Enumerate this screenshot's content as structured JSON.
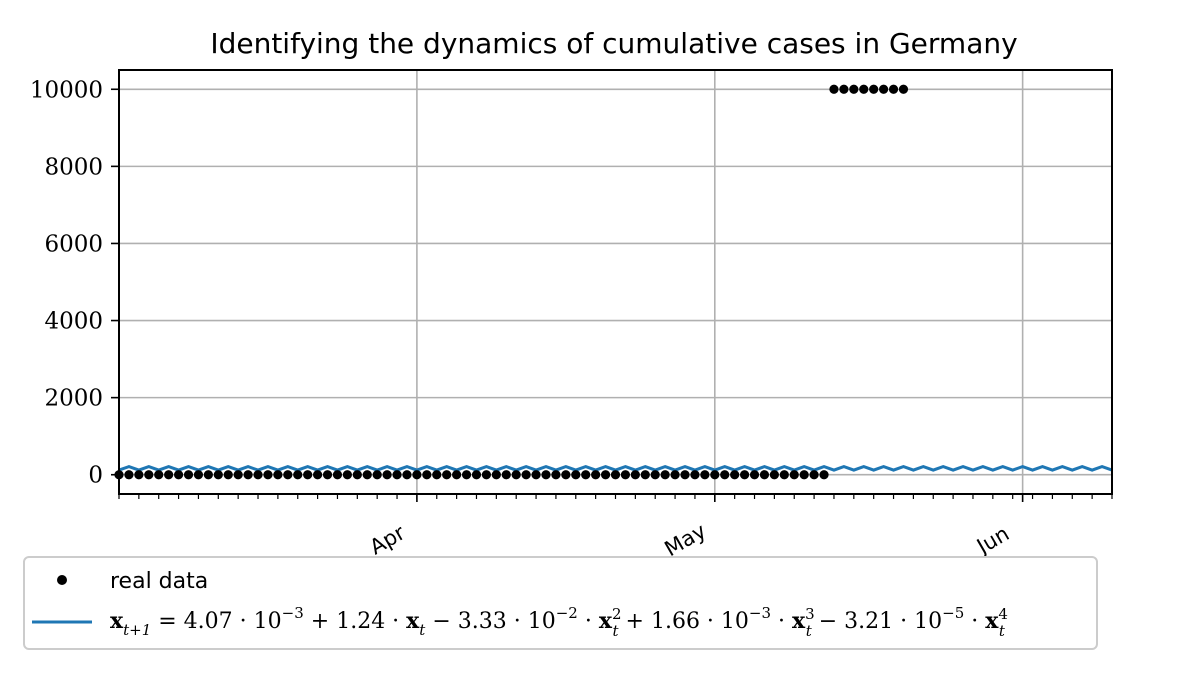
{
  "chart_data": {
    "type": "line",
    "title": "Identifying the dynamics of cumulative cases in Germany",
    "xlabel": "",
    "ylabel": "",
    "x_axis": {
      "kind": "date",
      "start": "2020-03-02",
      "end": "2020-06-10",
      "major_ticks": [
        {
          "date": "2020-04-01",
          "label": "Apr"
        },
        {
          "date": "2020-05-01",
          "label": "May"
        },
        {
          "date": "2020-06-01",
          "label": "Jun"
        }
      ],
      "minor_tick_interval_days": 2,
      "label_rotation_deg": 30
    },
    "ylim": [
      -500,
      10500
    ],
    "yticks": [
      0,
      2000,
      4000,
      6000,
      8000,
      10000
    ],
    "grid": true,
    "legend_position": "below",
    "series": [
      {
        "name": "real data",
        "kind": "points",
        "color": "#000000",
        "segments": [
          {
            "start": "2020-03-02",
            "end": "2020-05-12",
            "step_days": 1,
            "value": 0
          },
          {
            "start": "2020-05-13",
            "end": "2020-05-20",
            "step_days": 1,
            "value": 10000
          }
        ]
      },
      {
        "name": "x_{t+1} = 4.07·10^-3 + 1.24·x_t − 3.33·10^-2·x_t^2 + 1.66·10^-3·x_t^3 − 3.21·10^-5·x_t^4",
        "kind": "line",
        "color": "#1f77b4",
        "start": "2020-03-02",
        "end": "2020-06-10",
        "step_days": 1,
        "pattern": [
          120,
          210
        ],
        "pattern_note": "oscillates between 120 and 210 each day"
      }
    ],
    "legend": {
      "entries": [
        {
          "marker": "dot",
          "label": "real data"
        },
        {
          "marker": "line",
          "label_parts": [
            {
              "t": "x",
              "b": true
            },
            {
              "t": "t+1",
              "sub": true
            },
            {
              "t": " = 4.07 · 10"
            },
            {
              "t": "−3",
              "sup": true
            },
            {
              "t": " + 1.24 · "
            },
            {
              "t": "x",
              "b": true
            },
            {
              "t": "t",
              "sub": true
            },
            {
              "t": " − 3.33 · 10"
            },
            {
              "t": "−2",
              "sup": true
            },
            {
              "t": " · "
            },
            {
              "t": "x",
              "b": true
            },
            {
              "t": "2",
              "sup": true,
              "subt": "t"
            },
            {
              "t": " + 1.66 · 10"
            },
            {
              "t": "−3",
              "sup": true
            },
            {
              "t": " · "
            },
            {
              "t": "x",
              "b": true
            },
            {
              "t": "3",
              "sup": true,
              "subt": "t"
            },
            {
              "t": " − 3.21 · 10"
            },
            {
              "t": "−5",
              "sup": true
            },
            {
              "t": " · "
            },
            {
              "t": "x",
              "b": true
            },
            {
              "t": "4",
              "sup": true,
              "subt": "t"
            }
          ]
        }
      ]
    }
  }
}
